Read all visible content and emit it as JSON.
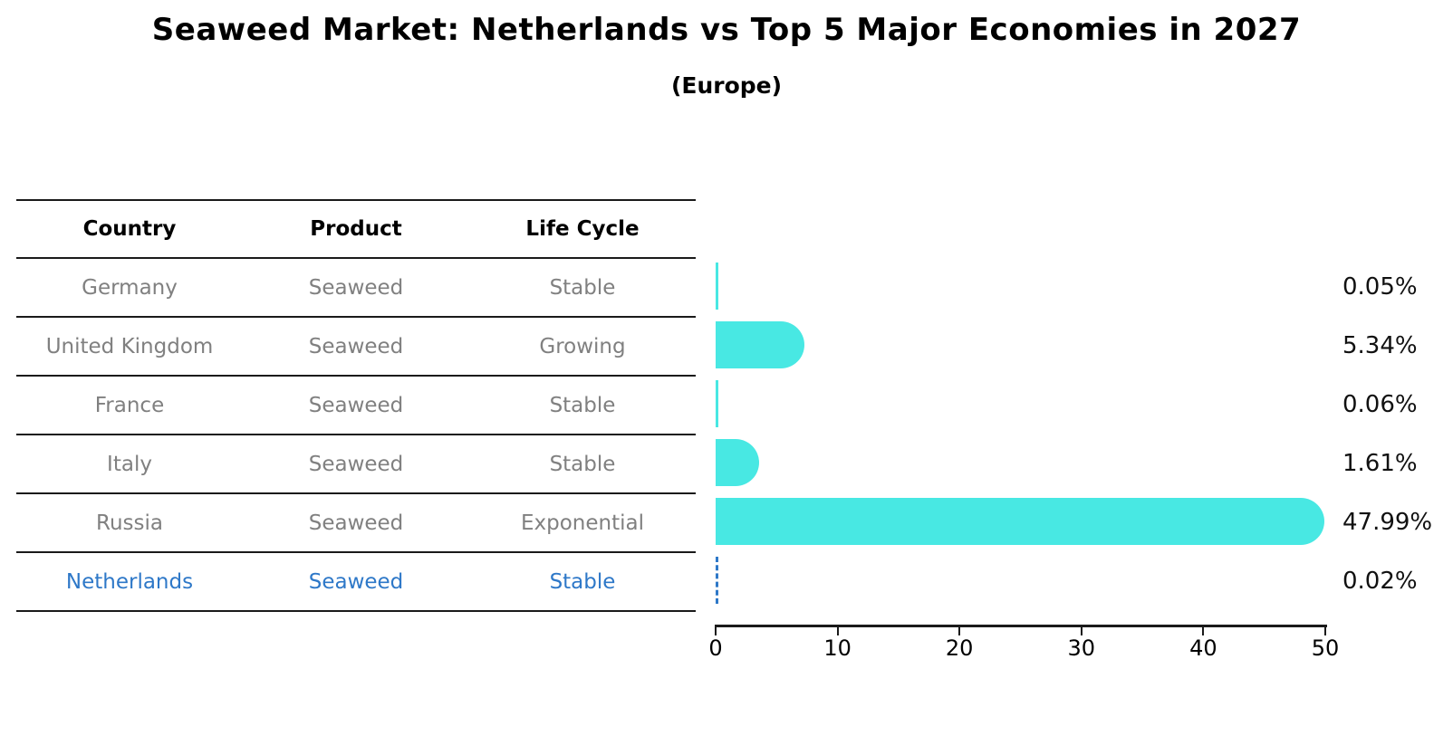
{
  "title": "Seaweed Market: Netherlands vs Top 5 Major Economies in 2027",
  "subtitle": "(Europe)",
  "table": {
    "headers": [
      "Country",
      "Product",
      "Life Cycle"
    ],
    "rows": [
      {
        "country": "Germany",
        "product": "Seaweed",
        "life_cycle": "Stable",
        "highlighted": false
      },
      {
        "country": "United Kingdom",
        "product": "Seaweed",
        "life_cycle": "Growing",
        "highlighted": false
      },
      {
        "country": "France",
        "product": "Seaweed",
        "life_cycle": "Stable",
        "highlighted": false
      },
      {
        "country": "Italy",
        "product": "Seaweed",
        "life_cycle": "Stable",
        "highlighted": false
      },
      {
        "country": "Russia",
        "product": "Seaweed",
        "life_cycle": "Exponential",
        "highlighted": false
      },
      {
        "country": "Netherlands",
        "product": "Seaweed",
        "life_cycle": "Stable",
        "highlighted": true
      }
    ]
  },
  "chart_data": {
    "type": "bar",
    "orientation": "horizontal",
    "title": "Seaweed Market: Netherlands vs Top 5 Major Economies in 2027",
    "subtitle": "(Europe)",
    "categories": [
      "Germany",
      "United Kingdom",
      "France",
      "Italy",
      "Russia",
      "Netherlands"
    ],
    "values": [
      0.05,
      5.34,
      0.06,
      1.61,
      47.99,
      0.02
    ],
    "value_labels": [
      "0.05%",
      "5.34%",
      "0.06%",
      "1.61%",
      "47.99%",
      "0.02%"
    ],
    "xlabel": "",
    "ylabel": "",
    "xlim": [
      0,
      50
    ],
    "xticks": [
      0,
      10,
      20,
      30,
      40,
      50
    ],
    "xtick_labels": [
      "0",
      "10",
      "20",
      "30",
      "40",
      "50"
    ],
    "grid": false,
    "legend": false,
    "bar_color": "#48e8e3",
    "highlight_color": "#2e78c8",
    "highlight_bar_style": "dashed-outline"
  }
}
